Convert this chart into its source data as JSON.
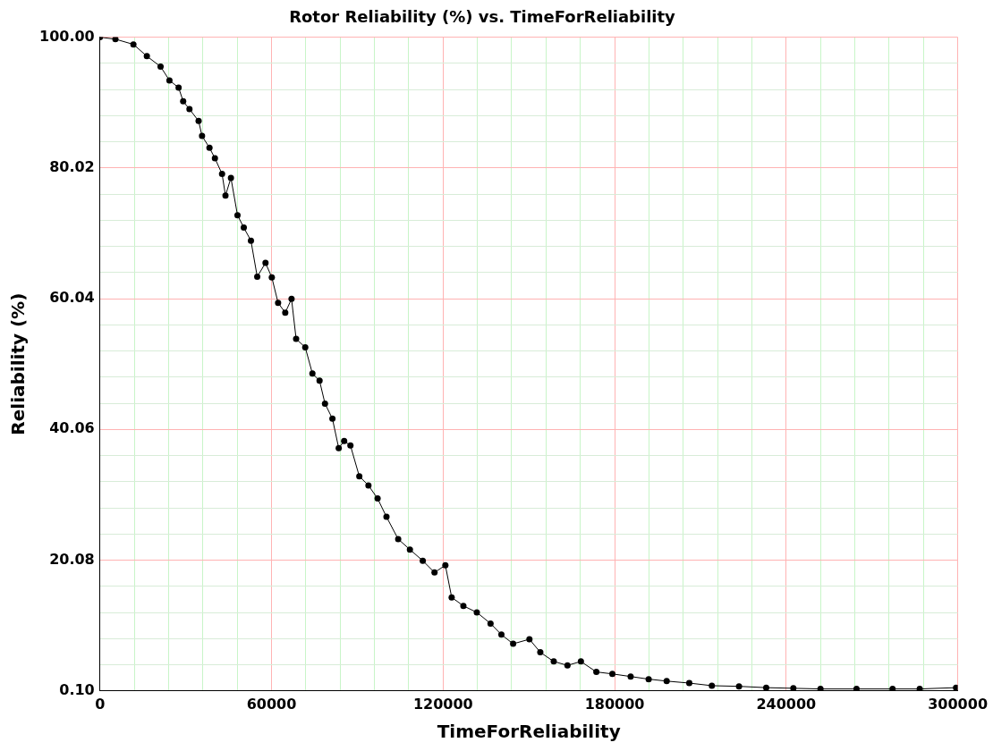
{
  "chart_data": {
    "type": "line",
    "title": "Rotor Reliability (%) vs. TimeForReliability",
    "xlabel": "TimeForReliability",
    "ylabel": "Reliability (%)",
    "x": [
      0,
      5400,
      11700,
      16400,
      21200,
      24300,
      27500,
      29100,
      31300,
      34500,
      35700,
      38300,
      40200,
      42700,
      43900,
      45800,
      48100,
      50300,
      52800,
      55000,
      57900,
      60100,
      62300,
      64800,
      67000,
      68600,
      71800,
      74300,
      76800,
      78700,
      81300,
      83500,
      85400,
      87600,
      90700,
      93900,
      97100,
      100200,
      104300,
      108400,
      112900,
      117000,
      120800,
      123000,
      127100,
      131800,
      136600,
      140400,
      144500,
      150200,
      154000,
      158700,
      163500,
      168200,
      173600,
      179200,
      185600,
      191900,
      198200,
      206100,
      214000,
      223500,
      233000,
      242500,
      252000,
      264600,
      277200,
      286700,
      299400
    ],
    "series": [
      {
        "color": "#000000",
        "values": [
          100,
          99.7,
          98.9,
          97.1,
          95.5,
          93.4,
          92.3,
          90.2,
          89.0,
          87.2,
          84.9,
          83.1,
          81.5,
          79.1,
          75.8,
          78.5,
          72.8,
          70.9,
          68.9,
          63.4,
          65.5,
          63.3,
          59.4,
          57.9,
          60.0,
          53.9,
          52.6,
          48.6,
          47.5,
          44.0,
          41.7,
          37.2,
          38.3,
          37.6,
          32.9,
          31.5,
          29.5,
          26.7,
          23.3,
          21.7,
          20.0,
          18.2,
          19.3,
          14.4,
          13.1,
          12.1,
          10.4,
          8.7,
          7.3,
          8.0,
          6.0,
          4.6,
          4.0,
          4.6,
          3.0,
          2.7,
          2.3,
          1.9,
          1.6,
          1.3,
          0.9,
          0.8,
          0.6,
          0.5,
          0.4,
          0.4,
          0.4,
          0.4,
          0.6
        ]
      }
    ],
    "xlim": [
      0,
      300000
    ],
    "xticks": [
      0,
      {
        "value": 12000,
        "label": null
      },
      {
        "value": 24000,
        "label": null
      },
      {
        "value": 36000,
        "label": null
      },
      {
        "value": 48000,
        "label": null
      },
      60000,
      {
        "value": 72000,
        "label": null
      },
      {
        "value": 84000,
        "label": null
      },
      {
        "value": 96000,
        "label": null
      },
      {
        "value": 108000,
        "label": null
      },
      120000,
      {
        "value": 132000,
        "label": null
      },
      {
        "value": 144000,
        "label": null
      },
      {
        "value": 156000,
        "label": null
      },
      {
        "value": 168000,
        "label": null
      },
      180000,
      {
        "value": 192000,
        "label": null
      },
      {
        "value": 204000,
        "label": null
      },
      {
        "value": 216000,
        "label": null
      },
      {
        "value": 228000,
        "label": null
      },
      240000,
      {
        "value": 252000,
        "label": null
      },
      {
        "value": 264000,
        "label": null
      },
      {
        "value": 276000,
        "label": null
      },
      {
        "value": 288000,
        "label": null
      },
      300000
    ],
    "ylim": [
      0.1,
      100
    ],
    "yticks": [
      {
        "value": 0.1,
        "label": "0.10"
      },
      {
        "value": 4.096,
        "label": null
      },
      {
        "value": 8.092,
        "label": null
      },
      {
        "value": 12.088,
        "label": null
      },
      {
        "value": 16.084,
        "label": null
      },
      {
        "value": 20.08,
        "label": "20.08"
      },
      {
        "value": 24.076,
        "label": null
      },
      {
        "value": 28.072,
        "label": null
      },
      {
        "value": 32.068,
        "label": null
      },
      {
        "value": 36.064,
        "label": null
      },
      {
        "value": 40.06,
        "label": "40.06"
      },
      {
        "value": 44.056,
        "label": null
      },
      {
        "value": 48.052,
        "label": null
      },
      {
        "value": 52.048,
        "label": null
      },
      {
        "value": 56.044,
        "label": null
      },
      {
        "value": 60.04,
        "label": "60.04"
      },
      {
        "value": 64.036,
        "label": null
      },
      {
        "value": 68.032,
        "label": null
      },
      {
        "value": 72.028,
        "label": null
      },
      {
        "value": 76.024,
        "label": null
      },
      {
        "value": 80.02,
        "label": "80.02"
      },
      {
        "value": 84.016,
        "label": null
      },
      {
        "value": 88.012,
        "label": null
      },
      {
        "value": 92.008,
        "label": null
      },
      {
        "value": 96.004,
        "label": null
      },
      {
        "value": 100,
        "label": "100.00"
      }
    ],
    "grid": true,
    "marker": "circle",
    "line_style": "solid"
  }
}
